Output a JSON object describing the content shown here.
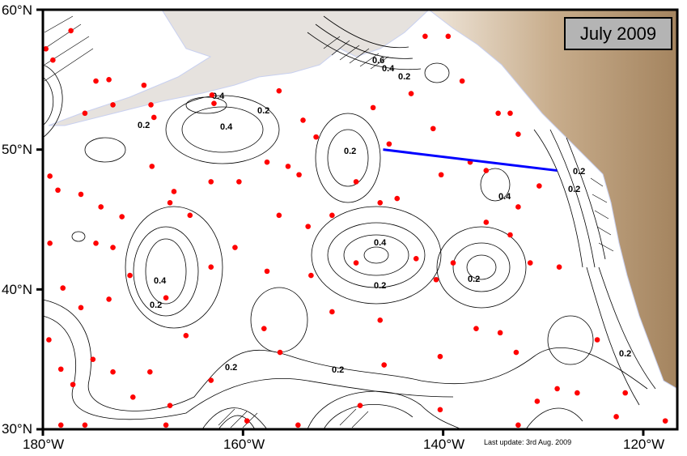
{
  "title": "July 2009",
  "last_update": "Last update: 3rd Aug. 2009",
  "colors": {
    "float": "#ff0000",
    "section_line": "#0000ff",
    "land_low": "#e8dccb",
    "land_high": "#a88a68",
    "contour": "#000000"
  },
  "axes": {
    "lat_labels": [
      "60°N",
      "50°N",
      "40°N",
      "30°N"
    ],
    "lon_labels": [
      "180°W",
      "160°W",
      "140°W",
      "120°W"
    ],
    "lon_range": [
      -180,
      -116.6
    ],
    "lat_range": [
      30,
      60
    ]
  },
  "contour_labels": [
    "0.2",
    "0.4",
    "0.6",
    "0.4",
    "0.2",
    "0.2",
    "0.4",
    "0.2",
    "0.2",
    "0.2",
    "0.4",
    "0.2",
    "0.4",
    "0.2",
    "0.2",
    "0.2",
    "0.2",
    "0.2",
    "0.4"
  ],
  "section_line": [
    [
      -146,
      50
    ],
    [
      -128.6,
      48.5
    ]
  ],
  "floats": [
    [
      -179.7,
      57.2
    ],
    [
      -179,
      56.4
    ],
    [
      -177.2,
      58.5
    ],
    [
      -174.7,
      54.9
    ],
    [
      -173.4,
      55
    ],
    [
      -175.8,
      52.6
    ],
    [
      -173,
      53.2
    ],
    [
      -169.9,
      54.6
    ],
    [
      -169.2,
      53.2
    ],
    [
      -168.9,
      52.3
    ],
    [
      -163.1,
      53.9
    ],
    [
      -162.9,
      53.3
    ],
    [
      -156.4,
      54.2
    ],
    [
      -154,
      52.1
    ],
    [
      -152.7,
      50.9
    ],
    [
      -147,
      53
    ],
    [
      -145.4,
      50.4
    ],
    [
      -141.8,
      58.1
    ],
    [
      -139.5,
      58.1
    ],
    [
      -143.2,
      54
    ],
    [
      -141,
      51.5
    ],
    [
      -138.1,
      54.9
    ],
    [
      -134.5,
      52.6
    ],
    [
      -132.5,
      51.1
    ],
    [
      -133.3,
      52.6
    ],
    [
      -179.3,
      48.1
    ],
    [
      -178.5,
      47.1
    ],
    [
      -176.2,
      46.8
    ],
    [
      -174.2,
      45.9
    ],
    [
      -172.1,
      45.2
    ],
    [
      -174.7,
      43.3
    ],
    [
      -179.3,
      43.3
    ],
    [
      -173,
      43
    ],
    [
      -166.9,
      47
    ],
    [
      -165.3,
      45.3
    ],
    [
      -167.3,
      46.2
    ],
    [
      -169.1,
      48.8
    ],
    [
      -163.2,
      47.7
    ],
    [
      -160.4,
      47.7
    ],
    [
      -157.6,
      49.1
    ],
    [
      -155.5,
      48.8
    ],
    [
      -154.4,
      48.2
    ],
    [
      -156.4,
      45.3
    ],
    [
      -153.5,
      44.5
    ],
    [
      -151.1,
      45.3
    ],
    [
      -148.7,
      47.7
    ],
    [
      -146.3,
      46.2
    ],
    [
      -144.6,
      46.5
    ],
    [
      -140.2,
      48.2
    ],
    [
      -137.3,
      49.1
    ],
    [
      -135.7,
      48.5
    ],
    [
      -130.4,
      47.4
    ],
    [
      -132.5,
      45.9
    ],
    [
      -135.7,
      44.8
    ],
    [
      -133.3,
      43.9
    ],
    [
      -131.3,
      41.9
    ],
    [
      -128.4,
      41.6
    ],
    [
      -139,
      41.9
    ],
    [
      -140.7,
      40.7
    ],
    [
      -142.7,
      42.2
    ],
    [
      -148.7,
      41.9
    ],
    [
      -153.2,
      41
    ],
    [
      -157.6,
      41.3
    ],
    [
      -163.2,
      41.6
    ],
    [
      -160.8,
      43
    ],
    [
      -167.7,
      39.4
    ],
    [
      -171.3,
      41
    ],
    [
      -173.4,
      39.3
    ],
    [
      -176.2,
      38.7
    ],
    [
      -178,
      40.1
    ],
    [
      -179.4,
      36.4
    ],
    [
      -178.2,
      34.3
    ],
    [
      -177,
      33.2
    ],
    [
      -175,
      35
    ],
    [
      -173,
      34.1
    ],
    [
      -171,
      32.3
    ],
    [
      -169.3,
      34.1
    ],
    [
      -167.3,
      31.7
    ],
    [
      -165.7,
      36.7
    ],
    [
      -163.2,
      33.5
    ],
    [
      -157.9,
      37.2
    ],
    [
      -156.3,
      35.5
    ],
    [
      -151.1,
      38.4
    ],
    [
      -146.3,
      37.8
    ],
    [
      -145.9,
      34.6
    ],
    [
      -140.3,
      35.2
    ],
    [
      -136.7,
      37.2
    ],
    [
      -134.3,
      36.9
    ],
    [
      -132.7,
      35.5
    ],
    [
      -130.6,
      32
    ],
    [
      -128.6,
      32.9
    ],
    [
      -126.6,
      32.6
    ],
    [
      -124.6,
      36.4
    ],
    [
      -121.8,
      32.6
    ],
    [
      -122.7,
      30.9
    ],
    [
      -117.8,
      30.6
    ],
    [
      -159.6,
      30.6
    ],
    [
      -154.5,
      30.3
    ],
    [
      -132.5,
      30.3
    ],
    [
      -178.2,
      30.3
    ],
    [
      -175.8,
      30.3
    ],
    [
      -167.7,
      30.3
    ],
    [
      -148.3,
      31.7
    ],
    [
      -140.3,
      31.4
    ]
  ]
}
